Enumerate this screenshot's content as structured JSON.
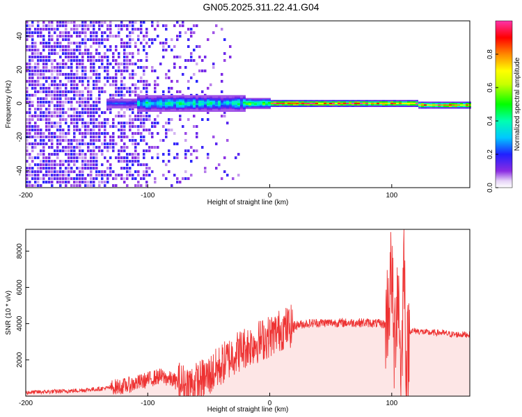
{
  "title": "GN05.2025.311.22.41.G04",
  "chart_data": [
    {
      "type": "heatmap",
      "title": "GN05.2025.311.22.41.G04",
      "xlabel": "Height of straight line (km)",
      "ylabel": "Frequency (Hz)",
      "xlim": [
        -200,
        164
      ],
      "ylim": [
        -50,
        49
      ],
      "xticks": [
        -200,
        -100,
        0,
        100
      ],
      "yticks": [
        -40,
        -20,
        0,
        20,
        40
      ],
      "colorbar": {
        "label": "Normalized spectral amplitude",
        "range": [
          0,
          1
        ],
        "ticks": [
          "0.0",
          "0.2",
          "0.4",
          "0.6",
          "0.8"
        ],
        "colormap": "rainbow (white → violet → blue → cyan → green → yellow → red → pink)"
      }
    },
    {
      "type": "line",
      "xlabel": "Height of straight line (km)",
      "ylabel": "SNR (10 * v/v)",
      "xlim": [
        -200,
        164
      ],
      "ylim": [
        0,
        9200
      ],
      "xticks": [
        -200,
        -100,
        0,
        100
      ],
      "yticks": [
        2000,
        4000,
        6000,
        8000
      ],
      "color": "#ee3333",
      "x": [
        -200,
        -180,
        -160,
        -140,
        -120,
        -110,
        -100,
        -90,
        -80,
        -70,
        -60,
        -50,
        -40,
        -30,
        -20,
        -10,
        0,
        10,
        20,
        30,
        40,
        50,
        60,
        70,
        80,
        90,
        95,
        98,
        100,
        102,
        105,
        108,
        110,
        112,
        115,
        120,
        130,
        140,
        150,
        164
      ],
      "values": [
        200,
        250,
        300,
        400,
        550,
        700,
        900,
        1100,
        900,
        600,
        700,
        1100,
        1700,
        2300,
        2700,
        3000,
        3300,
        3700,
        3900,
        4000,
        4050,
        4050,
        4050,
        4050,
        4050,
        4000,
        3950,
        5500,
        7000,
        2500,
        6500,
        1000,
        8500,
        1500,
        3600,
        3600,
        3500,
        3500,
        3400,
        3400
      ]
    }
  ]
}
